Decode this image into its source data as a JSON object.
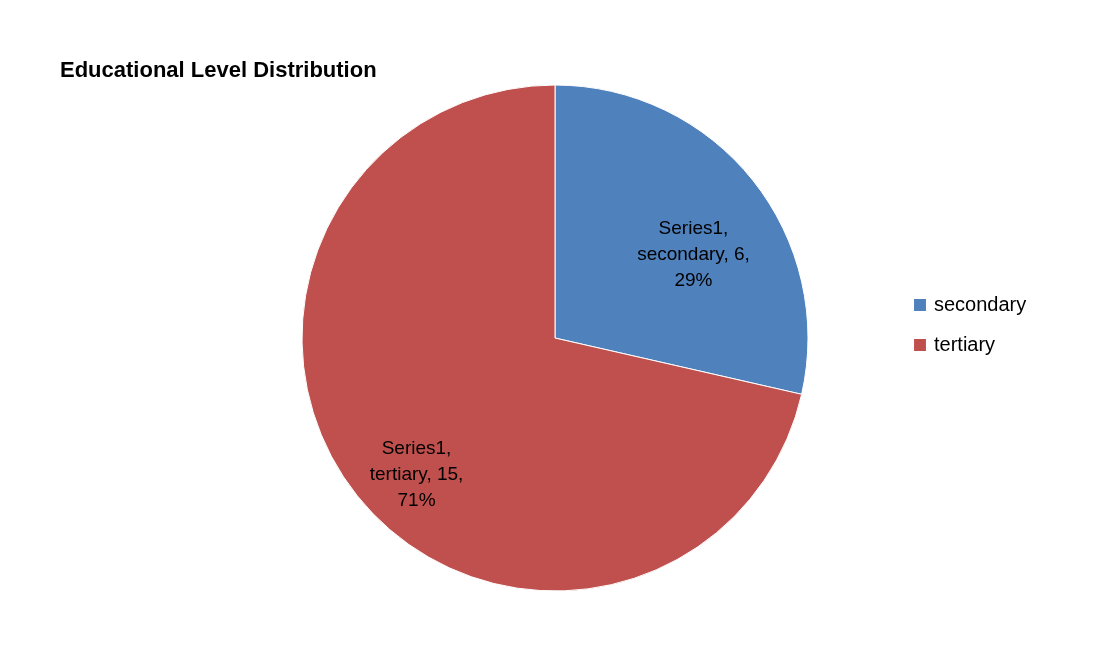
{
  "chart_data": {
    "type": "pie",
    "title": "Educational Level Distribution",
    "categories": [
      "secondary",
      "tertiary"
    ],
    "values": [
      6,
      15
    ],
    "colors": [
      "#4f81bd",
      "#c0504d"
    ],
    "value_labels": [
      "Series1,\nsecondary, 6,\n29%",
      "Series1,\ntertiary, 15,\n71%"
    ],
    "legend": "right"
  }
}
